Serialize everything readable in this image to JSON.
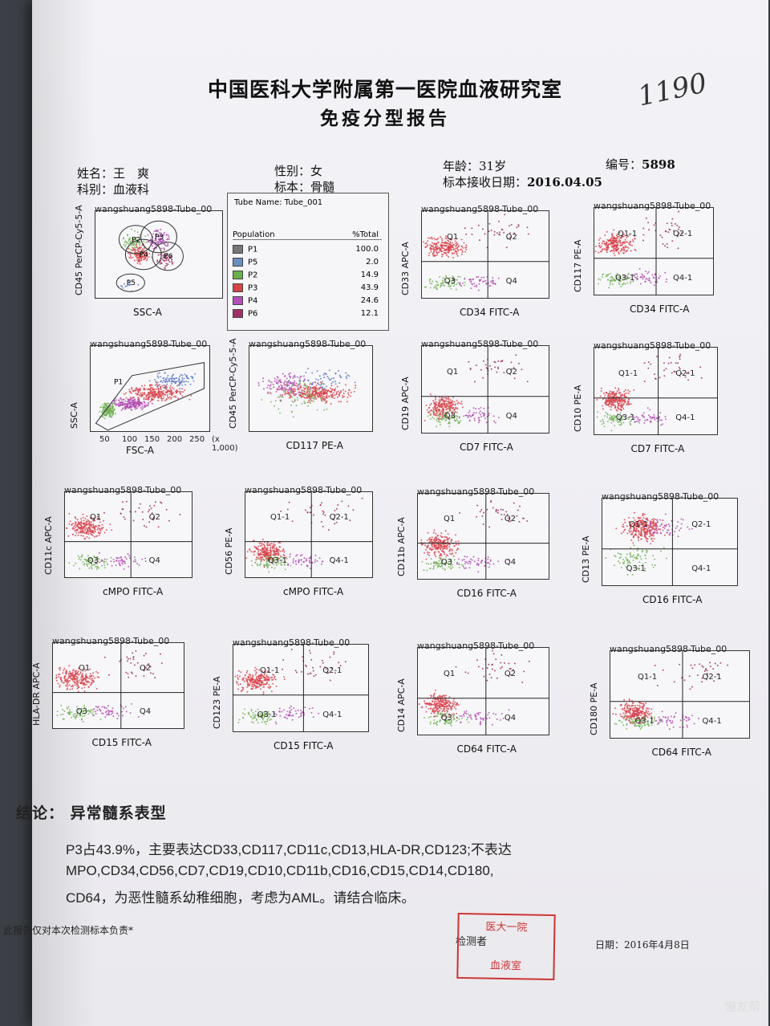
{
  "title_line1": "中国医科大学附属第一医院血液研究室",
  "title_line2": "免疫分型报告",
  "handwritten_number": "1190",
  "patient": {
    "name_label": "姓名：",
    "name": "王　爽",
    "dept_label": "科别：",
    "dept": "血液科",
    "sex_label": "性别：",
    "sex": "女",
    "specimen_label": "标本：",
    "specimen": "骨髓",
    "age_label": "年龄：",
    "age": "31岁",
    "id_label": "编号：",
    "id": "5898",
    "date_label": "标本接收日期：",
    "date": "2016.04.05"
  },
  "population_table": {
    "tube_name": "Tube Name:  Tube_001",
    "header_population": "Population",
    "header_total": "%Total",
    "rows": [
      {
        "name": "P1",
        "pct": "100.0",
        "color": "#777777"
      },
      {
        "name": "P5",
        "pct": "2.0",
        "color": "#6a8fc0"
      },
      {
        "name": "P2",
        "pct": "14.9",
        "color": "#6ab04c"
      },
      {
        "name": "P3",
        "pct": "43.9",
        "color": "#d64545"
      },
      {
        "name": "P4",
        "pct": "24.6",
        "color": "#b24fb8"
      },
      {
        "name": "P6",
        "pct": "12.1",
        "color": "#a03068"
      }
    ]
  },
  "plots": [
    {
      "title": "wangshuang5898-Tube_00",
      "x": "SSC-A",
      "y": "CD45 PerCP-Cy5-5-A",
      "quad": []
    },
    {
      "title": "wangshuang5898-Tube_00",
      "x": "CD34 FITC-A",
      "y": "CD33 APC-A",
      "quad": [
        "Q1",
        "Q2",
        "Q3",
        "Q4"
      ]
    },
    {
      "title": "wangshuang5898-Tube_00",
      "x": "CD34 FITC-A",
      "y": "CD117 PE-A",
      "quad": [
        "Q1-1",
        "Q2-1",
        "Q3-1",
        "Q4-1"
      ]
    },
    {
      "title": "wangshuang5898-Tube_00",
      "x": "FSC-A",
      "y": "SSC-A",
      "quad": []
    },
    {
      "title": "wangshuang5898-Tube_00",
      "x": "CD117 PE-A",
      "y": "CD45 PerCP-Cy5-5-A",
      "quad": []
    },
    {
      "title": "wangshuang5898-Tube_00",
      "x": "CD7 FITC-A",
      "y": "CD19 APC-A",
      "quad": [
        "Q1",
        "Q2",
        "Q3",
        "Q4"
      ]
    },
    {
      "title": "wangshuang5898-Tube_00",
      "x": "CD7 FITC-A",
      "y": "CD10 PE-A",
      "quad": [
        "Q1-1",
        "Q2-1",
        "Q3-1",
        "Q4-1"
      ]
    },
    {
      "title": "wangshuang5898-Tube_00",
      "x": "cMPO FITC-A",
      "y": "CD11c APC-A",
      "quad": [
        "Q1",
        "Q2",
        "Q3",
        "Q4"
      ]
    },
    {
      "title": "wangshuang5898-Tube_00",
      "x": "cMPO FITC-A",
      "y": "CD56 PE-A",
      "quad": [
        "Q1-1",
        "Q2-1",
        "Q3-1",
        "Q4-1"
      ]
    },
    {
      "title": "wangshuang5898-Tube_00",
      "x": "CD16 FITC-A",
      "y": "CD11b APC-A",
      "quad": [
        "Q1",
        "Q2",
        "Q3",
        "Q4"
      ]
    },
    {
      "title": "wangshuang5898-Tube_00",
      "x": "CD16 FITC-A",
      "y": "CD13 PE-A",
      "quad": [
        "Q1-1",
        "Q2-1",
        "Q3-1",
        "Q4-1"
      ]
    },
    {
      "title": "wangshuang5898-Tube_00",
      "x": "CD15 FITC-A",
      "y": "HLA-DR APC-A",
      "quad": [
        "Q1",
        "Q2",
        "Q3",
        "Q4"
      ]
    },
    {
      "title": "wangshuang5898-Tube_00",
      "x": "CD15 FITC-A",
      "y": "CD123 PE-A",
      "quad": [
        "Q1-1",
        "Q2-1",
        "Q3-1",
        "Q4-1"
      ]
    },
    {
      "title": "wangshuang5898-Tube_00",
      "x": "CD64 FITC-A",
      "y": "CD14 APC-A",
      "quad": [
        "Q1",
        "Q2",
        "Q3",
        "Q4"
      ]
    },
    {
      "title": "wangshuang5898-Tube_00",
      "x": "CD64 FITC-A",
      "y": "CD180 PE-A",
      "quad": [
        "Q1-1",
        "Q2-1",
        "Q3-1",
        "Q4-1"
      ]
    }
  ],
  "gate_labels": [
    "P2",
    "P3",
    "P4",
    "P6",
    "P5"
  ],
  "fsc_gate_label": "P1",
  "fsc_ticks": [
    "50",
    "100",
    "150",
    "200",
    "250",
    "(x 1,000)"
  ],
  "conclusion_label": "结论：",
  "conclusion": "异常髓系表型",
  "body_line1": "P3占43.9%，主要表达CD33,CD117,CD11c,CD13,HLA-DR,CD123;不表达",
  "body_line2": "MPO,CD34,CD56,CD7,CD19,CD10,CD11b,CD16,CD15,CD14,CD180,",
  "body_line3": "CD64，为恶性髓系幼稚细胞，考虑为AML。请结合临床。",
  "footnote": "此报告仅对本次检测标本负责*",
  "examiner_label": "检测者",
  "date_footer": "日期：2016年4月8日",
  "stamp_lines": [
    "医大一院",
    "血液室"
  ],
  "watermark": "慢友帮"
}
